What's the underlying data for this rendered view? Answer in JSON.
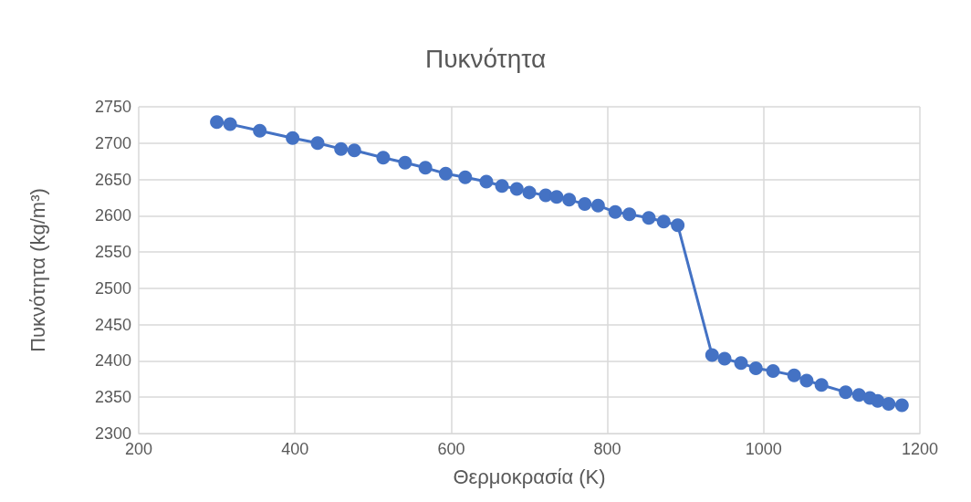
{
  "chart_data": {
    "type": "line",
    "title": "Πυκνότητα",
    "xlabel": "Θερμοκρασία (K)",
    "ylabel": "Πυκνότητα (kg/m³)",
    "x": [
      300,
      317,
      355,
      397,
      429,
      459,
      476,
      513,
      541,
      567,
      593,
      618,
      645,
      665,
      684,
      700,
      721,
      735,
      751,
      771,
      788,
      810,
      828,
      853,
      872,
      890,
      934,
      950,
      971,
      990,
      1012,
      1039,
      1055,
      1074,
      1105,
      1122,
      1136,
      1146,
      1160,
      1177
    ],
    "series": [
      {
        "color": "#4472c4",
        "values": [
          2729,
          2726,
          2717,
          2707,
          2700,
          2692,
          2690,
          2680,
          2673,
          2666,
          2658,
          2653,
          2647,
          2641,
          2637,
          2632,
          2628,
          2626,
          2622,
          2616,
          2614,
          2605,
          2602,
          2597,
          2592,
          2587,
          2408,
          2403,
          2397,
          2390,
          2386,
          2380,
          2373,
          2367,
          2357,
          2353,
          2349,
          2345,
          2341,
          2339
        ]
      }
    ],
    "xlim": [
      200,
      1200
    ],
    "xticks": [
      200,
      400,
      600,
      800,
      1000,
      1200
    ],
    "ylim": [
      2300,
      2750
    ],
    "yticks": [
      2300,
      2350,
      2400,
      2450,
      2500,
      2550,
      2600,
      2650,
      2700,
      2750
    ],
    "grid": true,
    "marker": "circle",
    "line_style": "solid"
  }
}
